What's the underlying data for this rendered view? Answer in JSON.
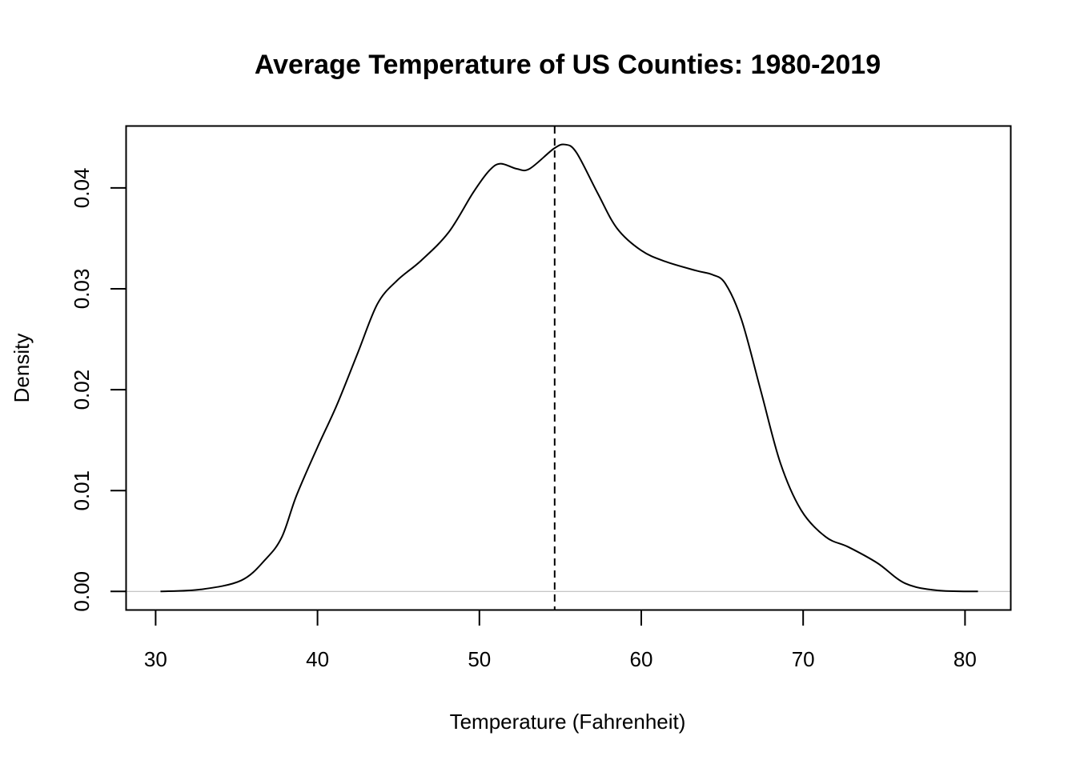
{
  "chart_data": {
    "type": "line",
    "title": "Average Temperature of US Counties: 1980-2019",
    "xlabel": "Temperature (Fahrenheit)",
    "ylabel": "Density",
    "xlim": [
      28.2,
      82.8
    ],
    "ylim": [
      -0.0018,
      0.0461
    ],
    "x_ticks": [
      30,
      40,
      50,
      60,
      70,
      80
    ],
    "x_tick_labels": [
      "30",
      "40",
      "50",
      "60",
      "70",
      "80"
    ],
    "y_ticks": [
      0.0,
      0.01,
      0.02,
      0.03,
      0.04
    ],
    "y_tick_labels": [
      "0.00",
      "0.01",
      "0.02",
      "0.03",
      "0.04"
    ],
    "grid": false,
    "legend": null,
    "zero_line": {
      "y": 0,
      "color": "#bebebe"
    },
    "vline": {
      "x": 54.65,
      "style": "dashed",
      "color": "#000000"
    },
    "series": [
      {
        "name": "density",
        "color": "#000000",
        "x": [
          30.3,
          32.8,
          35.3,
          36.8,
          37.8,
          38.7,
          40.0,
          41.2,
          42.5,
          43.7,
          44.9,
          46.4,
          48.1,
          49.6,
          50.6,
          51.3,
          52.3,
          53.1,
          54.6,
          55.3,
          56.0,
          57.3,
          58.5,
          60.0,
          61.5,
          63.4,
          64.4,
          65.2,
          66.2,
          67.4,
          68.6,
          69.9,
          71.4,
          72.8,
          74.6,
          76.3,
          78.3,
          80.8
        ],
        "y": [
          0.0,
          0.0002,
          0.0011,
          0.0032,
          0.0054,
          0.0095,
          0.0143,
          0.0185,
          0.0237,
          0.0285,
          0.0308,
          0.0328,
          0.0356,
          0.0395,
          0.0417,
          0.0424,
          0.0419,
          0.0419,
          0.0439,
          0.0443,
          0.0435,
          0.0395,
          0.036,
          0.0338,
          0.0327,
          0.0318,
          0.0314,
          0.0305,
          0.0269,
          0.0198,
          0.0127,
          0.008,
          0.0054,
          0.0044,
          0.0028,
          0.0008,
          0.0001,
          0.0
        ]
      }
    ]
  }
}
